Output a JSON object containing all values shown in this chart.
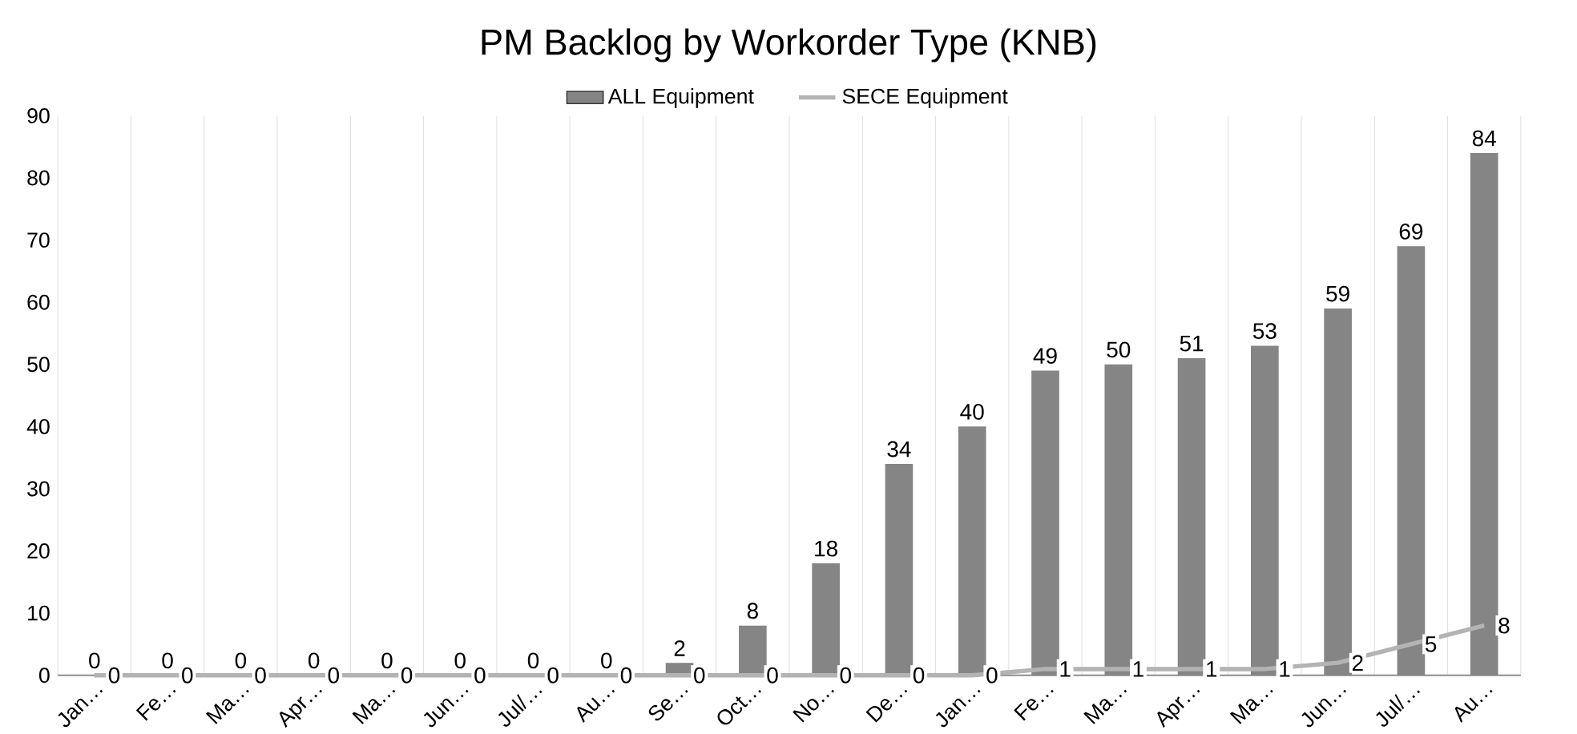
{
  "chart_data": {
    "type": "bar",
    "title": "PM Backlog by Workorder Type (KNB)",
    "categories": [
      "Jan…",
      "Fe…",
      "Ma…",
      "Apr…",
      "Ma…",
      "Jun…",
      "Jul/…",
      "Au…",
      "Se…",
      "Oct…",
      "No…",
      "De…",
      "Jan…",
      "Fe…",
      "Ma…",
      "Apr…",
      "Ma…",
      "Jun…",
      "Jul/…",
      "Au…"
    ],
    "series": [
      {
        "name": "ALL Equipment",
        "color": "#858585",
        "values": [
          0,
          0,
          0,
          0,
          0,
          0,
          0,
          0,
          2,
          8,
          18,
          34,
          40,
          49,
          50,
          51,
          53,
          59,
          69,
          84
        ]
      },
      {
        "name": "SECE Equipment",
        "type": "line",
        "color": "#b3b3b3",
        "values": [
          0,
          0,
          0,
          0,
          0,
          0,
          0,
          0,
          0,
          0,
          0,
          0,
          0,
          1,
          1,
          1,
          1,
          2,
          5,
          8
        ]
      }
    ],
    "ylim": [
      0,
      90
    ],
    "yticks": [
      0,
      10,
      20,
      30,
      40,
      50,
      60,
      70,
      80,
      90
    ],
    "grid": "x",
    "legend": "top",
    "data_labels": true,
    "marker": "none",
    "line_style": "solid"
  }
}
